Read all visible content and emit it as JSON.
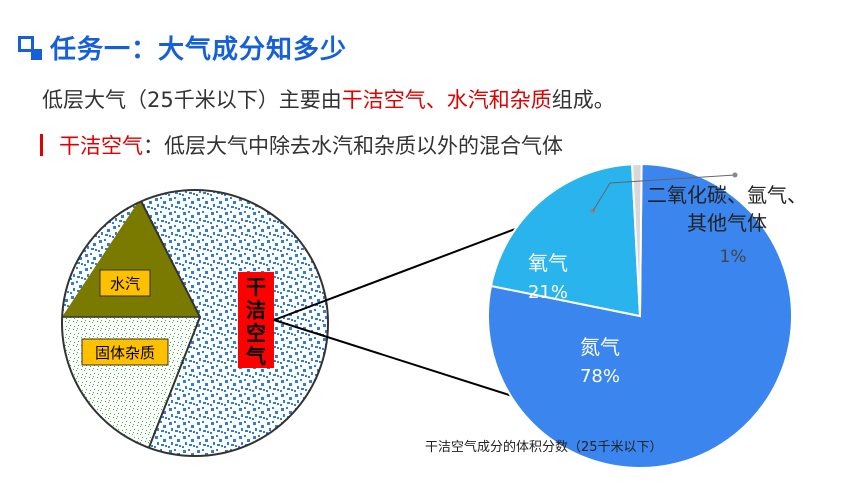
{
  "title": "任务一：大气成分知多少",
  "intro": {
    "prefix": "低层大气（25千米以下）主要由",
    "highlight": "干洁空气、水汽和杂质",
    "suffix": "组成。"
  },
  "definition": {
    "term": "干洁空气",
    "text": "：低层大气中除去水汽和杂质以外的混合气体"
  },
  "left_circle": {
    "labels": {
      "water_vapor": "水汽",
      "solid_impurities": "固体杂质",
      "dry_air": "干洁空气"
    },
    "colors": {
      "water_vapor": "#7a7a00",
      "solid_impurities": "#2ec82e",
      "dry_air": "#2f7fd9",
      "dry_air_label_bg": "#ff0000",
      "label_bg": "#ffc000"
    }
  },
  "chart_data": {
    "type": "pie",
    "title": "干洁空气成分的体积分数（25千米以下）",
    "slices": [
      {
        "name": "氮气",
        "value": 78,
        "label": "78%",
        "color": "#3a86ee"
      },
      {
        "name": "氧气",
        "value": 21,
        "label": "21%",
        "color": "#29b4ee"
      },
      {
        "name": "二氧化碳、氩气、其他气体",
        "value": 1,
        "label": "1%",
        "color": "#d8d8d8"
      }
    ],
    "callout_lines": [
      "二氧化碳、氩气、",
      "其他气体"
    ]
  }
}
